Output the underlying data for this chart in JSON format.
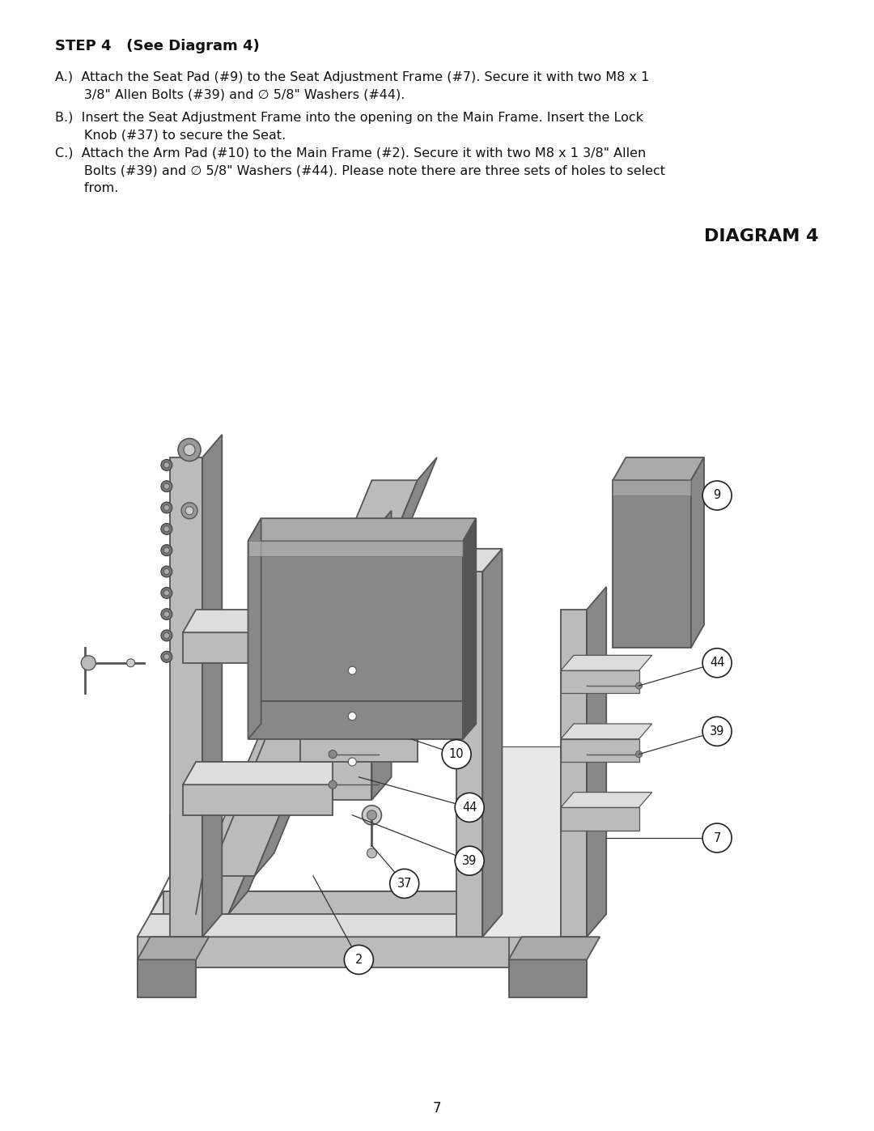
{
  "background_color": "#ffffff",
  "page_width": 10.8,
  "page_height": 13.97,
  "dpi": 100,
  "step_title": "STEP 4   (See Diagram 4)",
  "instructions_raw": [
    "A.)  Attach the Seat Pad (#9) to the Seat Adjustment Frame (#7). Secure it with two M8 x 1\n       3/8\" Allen Bolts (#39) and ∅ 5/8\" Washers (#44).",
    "B.)  Insert the Seat Adjustment Frame into the opening on the Main Frame. Insert the Lock\n       Knob (#37) to secure the Seat.",
    "C.)  Attach the Arm Pad (#10) to the Main Frame (#2). Secure it with two M8 x 1 3/8\" Allen\n       Bolts (#39) and ∅ 5/8\" Washers (#44). Please note there are three sets of holes to select\n       from."
  ],
  "instruction_fontsize": 11.5,
  "step_title_fontsize": 13,
  "diagram_title": "DIAGRAM 4",
  "diagram_title_fontsize": 16,
  "page_number": "7",
  "page_number_fontsize": 12
}
